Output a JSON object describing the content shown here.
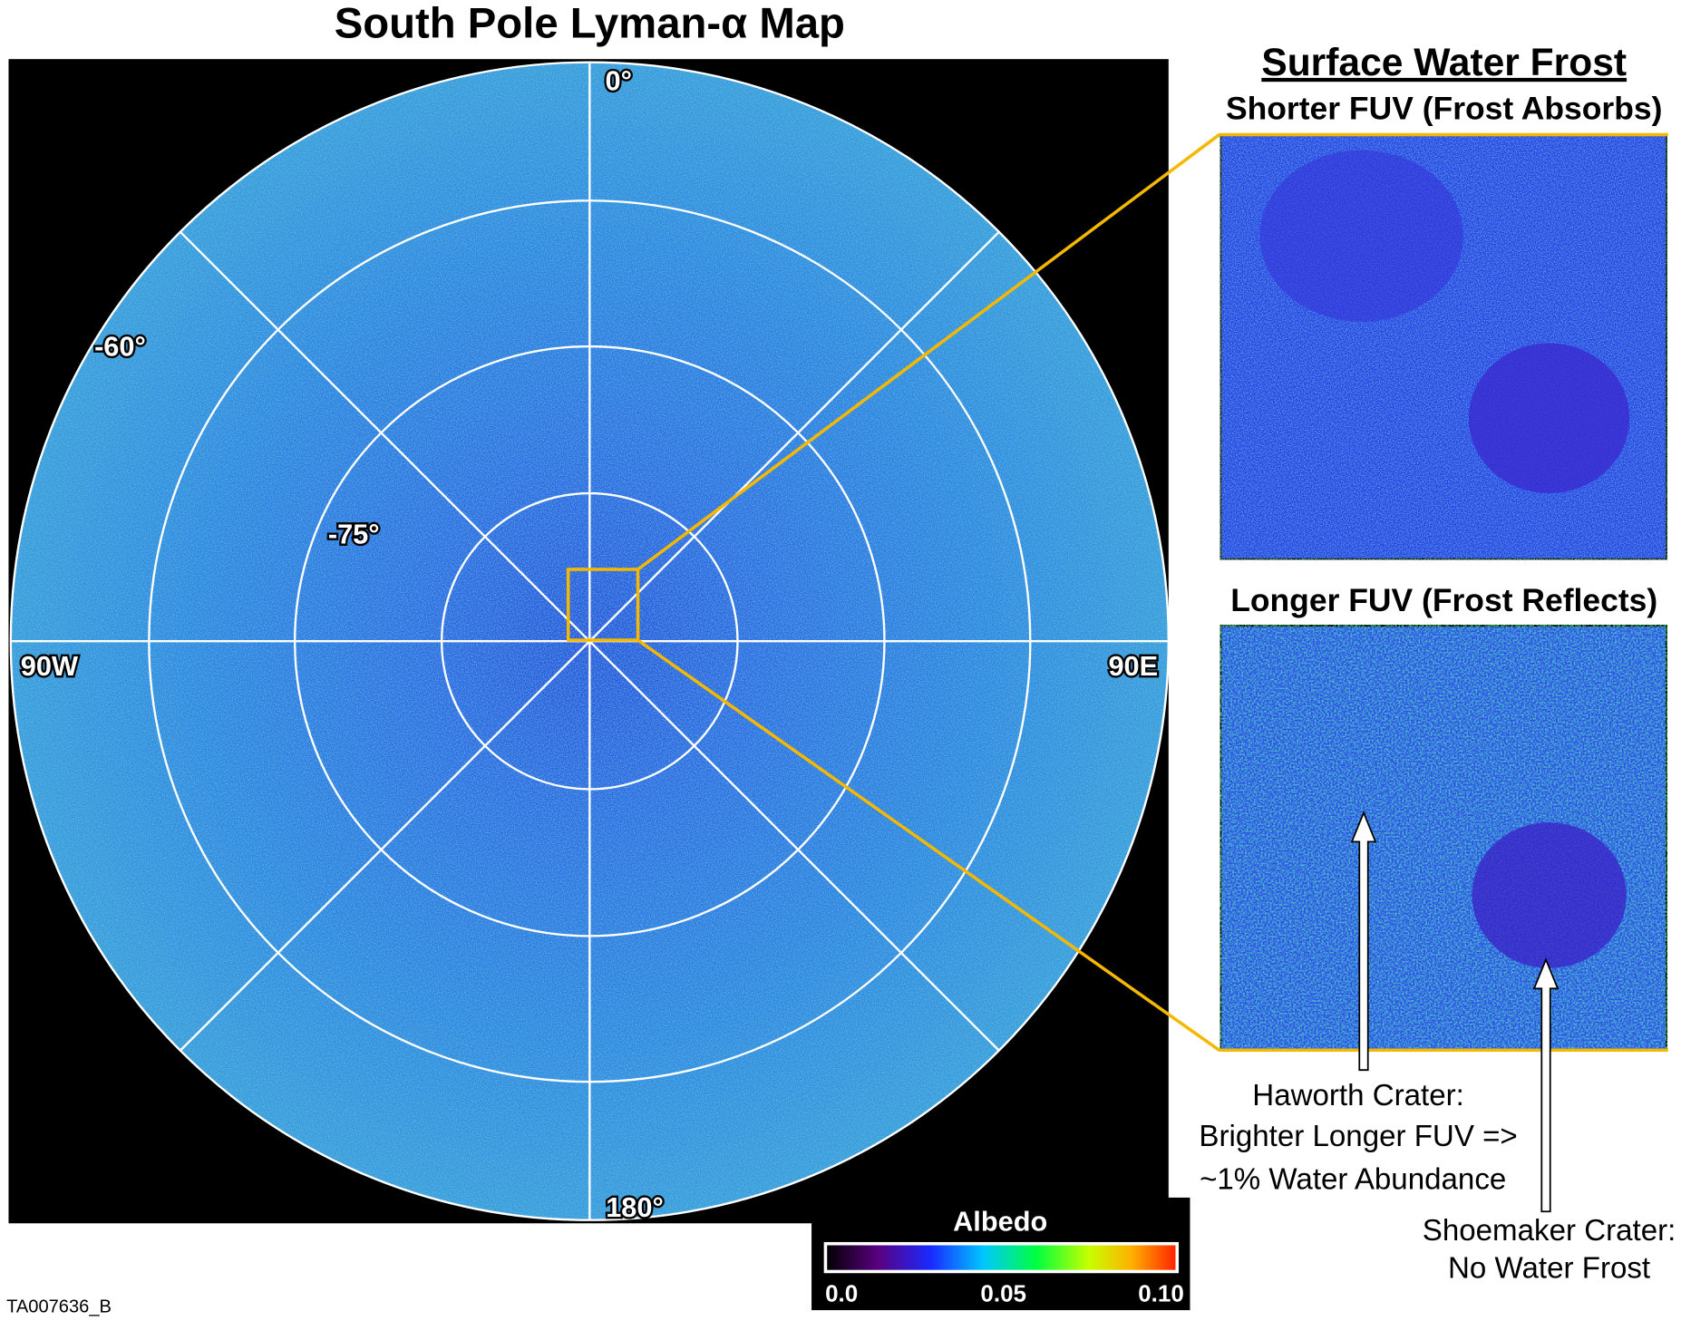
{
  "title": "South Pole Lyman-α Map",
  "map": {
    "labels": {
      "north": "0°",
      "lat60": "-60°",
      "lat75": "-75°",
      "west": "90W",
      "east": "90E",
      "south": "180°"
    }
  },
  "side": {
    "heading": "Surface Water Frost",
    "panels": [
      {
        "title": "Shorter FUV (Frost Absorbs)"
      },
      {
        "title": "Longer FUV (Frost Reflects)"
      }
    ]
  },
  "annotations": {
    "haworth": [
      "Haworth Crater:",
      "Brighter Longer FUV =>",
      "~1% Water Abundance"
    ],
    "shoemaker": [
      "Shoemaker Crater:",
      "No Water Frost"
    ]
  },
  "colorbar": {
    "title": "Albedo",
    "ticks": [
      "0.0",
      "0.05",
      "0.10"
    ]
  },
  "footer": {
    "id": "TA007636_B"
  }
}
